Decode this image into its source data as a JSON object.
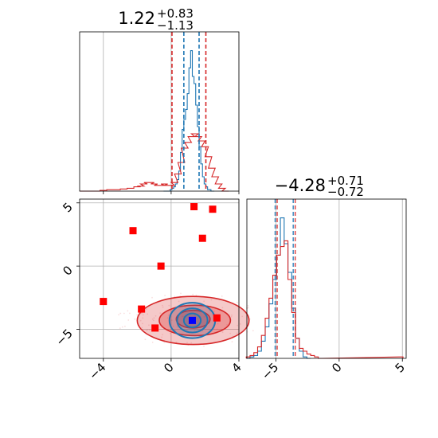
{
  "chart_data": {
    "type": "corner",
    "colors": {
      "primary": "#1f77b4",
      "secondary": "#d62728",
      "truth_marker": "#0000ff",
      "extra_markers": "#ff0000",
      "grid": "#b0b0b0"
    },
    "panels": [
      {
        "id": "marginal-x",
        "type": "histogram",
        "title": {
          "median": "1.22",
          "plus": "+0.83",
          "minus": "−1.13"
        },
        "xlim": [
          -5.4,
          4.0
        ],
        "x_ticks": [
          -4,
          0,
          4
        ],
        "grid": true,
        "quantile_lines": {
          "blue": [
            0.75,
            1.65
          ],
          "red": [
            0.05,
            2.05
          ]
        },
        "series": [
          {
            "name": "",
            "color": "#1f77b4",
            "x": [
              -0.4,
              -0.3,
              -0.2,
              -0.1,
              0.0,
              0.1,
              0.2,
              0.3,
              0.4,
              0.5,
              0.6,
              0.7,
              0.8,
              0.9,
              1.0,
              1.1,
              1.2,
              1.3,
              1.4,
              1.5,
              1.6,
              1.7,
              1.8,
              1.9,
              2.0,
              2.1,
              2.2,
              2.3,
              2.4,
              2.5
            ],
            "y": [
              0,
              0,
              0,
              0,
              0.01,
              0.02,
              0.03,
              0.05,
              0.08,
              0.14,
              0.27,
              0.43,
              0.5,
              0.57,
              0.68,
              0.86,
              0.98,
              0.8,
              0.75,
              0.6,
              0.45,
              0.31,
              0.19,
              0.1,
              0.05,
              0.03,
              0.01,
              0.01,
              0,
              0
            ]
          },
          {
            "name": "",
            "color": "#d62728",
            "x": [
              -5.2,
              -4.8,
              -4.4,
              -4.0,
              -3.6,
              -3.2,
              -2.8,
              -2.4,
              -2.0,
              -1.8,
              -1.6,
              -1.4,
              -1.2,
              -1.0,
              -0.8,
              -0.6,
              -0.4,
              -0.2,
              0.0,
              0.2,
              0.4,
              0.6,
              0.8,
              1.0,
              1.2,
              1.4,
              1.6,
              1.8,
              2.0,
              2.2,
              2.4,
              2.6,
              2.8,
              3.0,
              3.2
            ],
            "y": [
              0,
              0,
              0,
              0.005,
              0.01,
              0.01,
              0.015,
              0.02,
              0.03,
              0.035,
              0.05,
              0.06,
              0.06,
              0.05,
              0.04,
              0.04,
              0.05,
              0.04,
              0.04,
              0.06,
              0.12,
              0.2,
              0.3,
              0.34,
              0.38,
              0.4,
              0.38,
              0.35,
              0.31,
              0.24,
              0.16,
              0.1,
              0.05,
              0.02,
              0
            ]
          }
        ]
      },
      {
        "id": "joint",
        "type": "2d-contour",
        "xlim": [
          -5.4,
          4.0
        ],
        "ylim": [
          -7.3,
          5.3
        ],
        "x_ticks": [
          -4,
          0,
          4
        ],
        "y_ticks": [
          5,
          0,
          -5
        ],
        "grid": true,
        "red_contours": [
          {
            "cx": 1.3,
            "cy": -4.3,
            "rx": 3.3,
            "ry": 1.9,
            "fill_opacity": 0.25
          },
          {
            "cx": 1.4,
            "cy": -4.3,
            "rx": 2.1,
            "ry": 1.2,
            "fill_opacity": 0.3
          },
          {
            "cx": 1.3,
            "cy": -4.2,
            "rx": 1.0,
            "ry": 0.7,
            "fill_opacity": 0.35
          }
        ],
        "blue_contours": [
          {
            "cx": 1.25,
            "cy": -4.3,
            "rx": 1.35,
            "ry": 1.4
          },
          {
            "cx": 1.25,
            "cy": -4.3,
            "rx": 0.9,
            "ry": 0.95
          },
          {
            "cx": 1.25,
            "cy": -4.3,
            "rx": 0.5,
            "ry": 0.55
          }
        ],
        "truth_point": {
          "x": 1.25,
          "y": -4.3
        },
        "extra_points": [
          {
            "x": 1.35,
            "y": 4.7
          },
          {
            "x": 2.45,
            "y": 4.5
          },
          {
            "x": -2.25,
            "y": 2.8
          },
          {
            "x": 1.85,
            "y": 2.2
          },
          {
            "x": -0.6,
            "y": 0.0
          },
          {
            "x": -4.0,
            "y": -2.8
          },
          {
            "x": -1.75,
            "y": -3.4
          },
          {
            "x": -0.95,
            "y": -4.9
          },
          {
            "x": 2.7,
            "y": -4.1
          }
        ]
      },
      {
        "id": "marginal-y",
        "type": "histogram",
        "title": {
          "median": "−4.28",
          "plus": "+0.71",
          "minus": "−0.72"
        },
        "xlim": [
          -7.3,
          5.3
        ],
        "x_ticks": [
          -5,
          0,
          5
        ],
        "grid": true,
        "quantile_lines": {
          "blue": [
            -5.0,
            -3.57
          ],
          "red": [
            -5.0,
            -3.57
          ]
        },
        "series": [
          {
            "name": "",
            "color": "#1f77b4",
            "x": [
              -7.2,
              -6.9,
              -6.6,
              -6.3,
              -6.0,
              -5.7,
              -5.4,
              -5.1,
              -4.8,
              -4.5,
              -4.2,
              -3.9,
              -3.6,
              -3.3,
              -3.0,
              -2.7,
              -2.4
            ],
            "y": [
              0,
              0.01,
              0.02,
              0.05,
              0.12,
              0.22,
              0.38,
              0.55,
              0.72,
              0.98,
              0.8,
              0.6,
              0.35,
              0.14,
              0.05,
              0.01,
              0
            ]
          },
          {
            "name": "",
            "color": "#d62728",
            "x": [
              -7.2,
              -6.9,
              -6.6,
              -6.3,
              -6.0,
              -5.7,
              -5.4,
              -5.1,
              -4.8,
              -4.5,
              -4.2,
              -3.9,
              -3.6,
              -3.3,
              -3.0,
              -2.7,
              -2.4,
              -2.1,
              -1.8,
              -1.5,
              4.9
            ],
            "y": [
              0.01,
              0.02,
              0.04,
              0.08,
              0.16,
              0.28,
              0.42,
              0.58,
              0.72,
              0.78,
              0.82,
              0.55,
              0.32,
              0.14,
              0.07,
              0.05,
              0.03,
              0.02,
              0.01,
              0,
              0.01
            ]
          }
        ]
      }
    ]
  }
}
